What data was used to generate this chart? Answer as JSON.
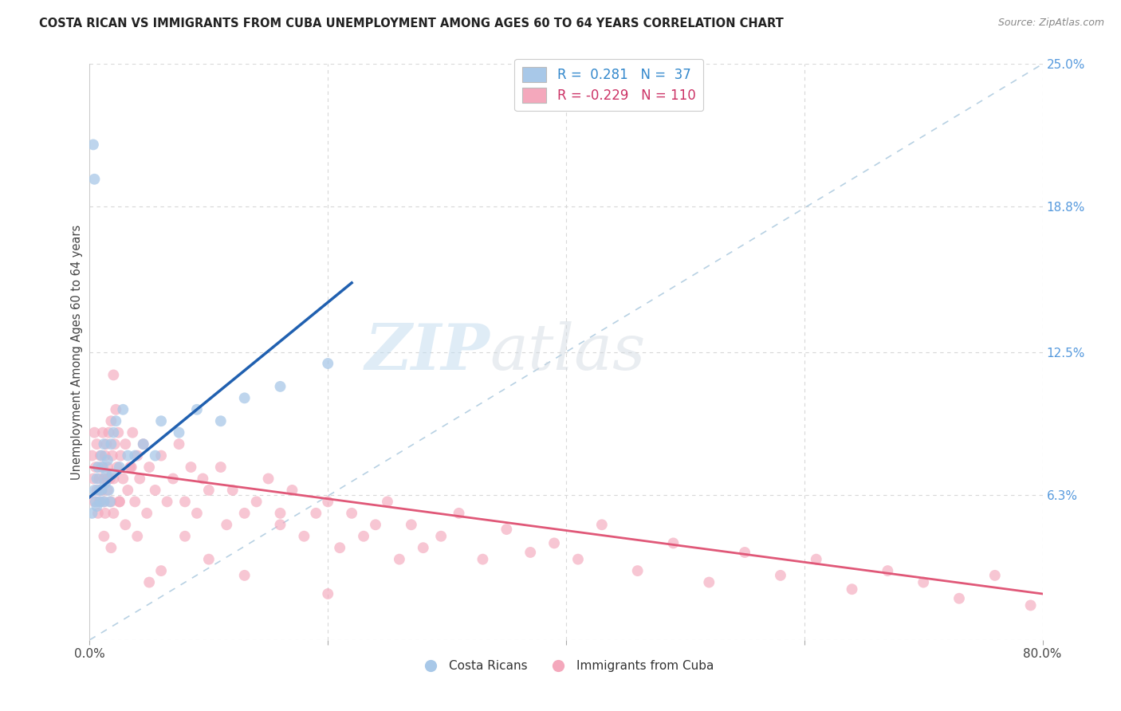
{
  "title": "COSTA RICAN VS IMMIGRANTS FROM CUBA UNEMPLOYMENT AMONG AGES 60 TO 64 YEARS CORRELATION CHART",
  "source": "Source: ZipAtlas.com",
  "ylabel": "Unemployment Among Ages 60 to 64 years",
  "xlim": [
    0.0,
    0.8
  ],
  "ylim": [
    0.0,
    0.25
  ],
  "ytick_labels_right": [
    "25.0%",
    "18.8%",
    "12.5%",
    "6.3%",
    ""
  ],
  "ytick_vals_right": [
    0.25,
    0.188,
    0.125,
    0.063,
    0.0
  ],
  "blue_color": "#a8c8e8",
  "pink_color": "#f4a8bc",
  "blue_line_color": "#2060b0",
  "pink_line_color": "#e05878",
  "dashed_line_color": "#b0cce0",
  "watermark_zip": "ZIP",
  "watermark_atlas": "atlas",
  "background_color": "#ffffff",
  "grid_color": "#d8d8d8",
  "cr_x": [
    0.002,
    0.003,
    0.004,
    0.004,
    0.005,
    0.006,
    0.006,
    0.007,
    0.008,
    0.009,
    0.01,
    0.01,
    0.011,
    0.012,
    0.012,
    0.013,
    0.014,
    0.015,
    0.016,
    0.017,
    0.018,
    0.019,
    0.02,
    0.022,
    0.025,
    0.028,
    0.032,
    0.038,
    0.045,
    0.055,
    0.06,
    0.075,
    0.09,
    0.11,
    0.13,
    0.16,
    0.2
  ],
  "cr_y": [
    0.055,
    0.215,
    0.2,
    0.065,
    0.06,
    0.07,
    0.058,
    0.075,
    0.065,
    0.06,
    0.08,
    0.065,
    0.075,
    0.085,
    0.06,
    0.068,
    0.072,
    0.078,
    0.065,
    0.06,
    0.085,
    0.072,
    0.09,
    0.095,
    0.075,
    0.1,
    0.08,
    0.08,
    0.085,
    0.08,
    0.095,
    0.09,
    0.1,
    0.095,
    0.105,
    0.11,
    0.12
  ],
  "cuba_x": [
    0.002,
    0.003,
    0.004,
    0.004,
    0.005,
    0.006,
    0.006,
    0.007,
    0.008,
    0.008,
    0.009,
    0.01,
    0.01,
    0.011,
    0.012,
    0.012,
    0.013,
    0.013,
    0.014,
    0.015,
    0.015,
    0.016,
    0.017,
    0.018,
    0.018,
    0.019,
    0.02,
    0.02,
    0.021,
    0.022,
    0.023,
    0.024,
    0.025,
    0.026,
    0.028,
    0.03,
    0.032,
    0.034,
    0.036,
    0.038,
    0.04,
    0.042,
    0.045,
    0.048,
    0.05,
    0.055,
    0.06,
    0.065,
    0.07,
    0.075,
    0.08,
    0.085,
    0.09,
    0.095,
    0.1,
    0.11,
    0.115,
    0.12,
    0.13,
    0.14,
    0.15,
    0.16,
    0.17,
    0.18,
    0.19,
    0.2,
    0.21,
    0.22,
    0.23,
    0.24,
    0.25,
    0.26,
    0.27,
    0.28,
    0.295,
    0.31,
    0.33,
    0.35,
    0.37,
    0.39,
    0.41,
    0.43,
    0.46,
    0.49,
    0.52,
    0.55,
    0.58,
    0.61,
    0.64,
    0.67,
    0.7,
    0.73,
    0.76,
    0.79,
    0.01,
    0.012,
    0.015,
    0.018,
    0.02,
    0.025,
    0.03,
    0.035,
    0.04,
    0.05,
    0.06,
    0.08,
    0.1,
    0.13,
    0.16,
    0.2
  ],
  "cuba_y": [
    0.08,
    0.07,
    0.09,
    0.06,
    0.075,
    0.065,
    0.085,
    0.055,
    0.07,
    0.06,
    0.08,
    0.065,
    0.075,
    0.09,
    0.07,
    0.06,
    0.08,
    0.055,
    0.085,
    0.065,
    0.075,
    0.09,
    0.07,
    0.095,
    0.06,
    0.08,
    0.115,
    0.07,
    0.085,
    0.1,
    0.075,
    0.09,
    0.06,
    0.08,
    0.07,
    0.085,
    0.065,
    0.075,
    0.09,
    0.06,
    0.08,
    0.07,
    0.085,
    0.055,
    0.075,
    0.065,
    0.08,
    0.06,
    0.07,
    0.085,
    0.06,
    0.075,
    0.055,
    0.07,
    0.065,
    0.075,
    0.05,
    0.065,
    0.055,
    0.06,
    0.07,
    0.05,
    0.065,
    0.045,
    0.055,
    0.06,
    0.04,
    0.055,
    0.045,
    0.05,
    0.06,
    0.035,
    0.05,
    0.04,
    0.045,
    0.055,
    0.035,
    0.048,
    0.038,
    0.042,
    0.035,
    0.05,
    0.03,
    0.042,
    0.025,
    0.038,
    0.028,
    0.035,
    0.022,
    0.03,
    0.025,
    0.018,
    0.028,
    0.015,
    0.065,
    0.045,
    0.07,
    0.04,
    0.055,
    0.06,
    0.05,
    0.075,
    0.045,
    0.025,
    0.03,
    0.045,
    0.035,
    0.028,
    0.055,
    0.02
  ],
  "blue_line_x": [
    0.0,
    0.22
  ],
  "blue_line_y": [
    0.062,
    0.155
  ],
  "pink_line_x": [
    0.0,
    0.8
  ],
  "pink_line_y": [
    0.075,
    0.02
  ]
}
